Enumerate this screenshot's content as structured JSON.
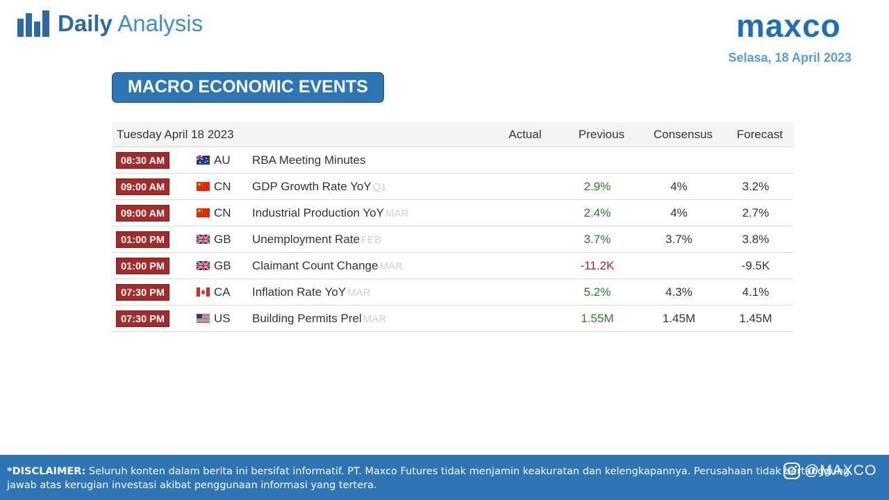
{
  "header": {
    "brand_bold": "Daily",
    "brand_light": "Analysis",
    "company_logo_text": "maxco",
    "date": "Selasa,  18 April  2023",
    "colors": {
      "brand_blue": "#2c6aa6",
      "accent_blue": "#2e75b6",
      "badge_red": "#a52a2a"
    },
    "icons": [
      "bar-chart-logo-icon"
    ]
  },
  "section": {
    "title": "MACRO ECONOMIC EVENTS"
  },
  "table": {
    "date_header": "Tuesday April 18 2023",
    "columns": {
      "actual": "Actual",
      "previous": "Previous",
      "consensus": "Consensus",
      "forecast": "Forecast"
    },
    "rows": [
      {
        "time": "08:30 AM",
        "country": "AU",
        "flag": "au-flag-icon",
        "event": "RBA Meeting Minutes",
        "period": "",
        "actual": "",
        "previous": "",
        "previous_tone": "neutral",
        "consensus": "",
        "forecast": ""
      },
      {
        "time": "09:00 AM",
        "country": "CN",
        "flag": "cn-flag-icon",
        "event": "GDP Growth Rate YoY",
        "period": "Q1",
        "actual": "",
        "previous": "2.9%",
        "previous_tone": "positive",
        "consensus": "4%",
        "forecast": "3.2%"
      },
      {
        "time": "09:00 AM",
        "country": "CN",
        "flag": "cn-flag-icon",
        "event": "Industrial Production YoY",
        "period": "MAR",
        "actual": "",
        "previous": "2.4%",
        "previous_tone": "positive",
        "consensus": "4%",
        "forecast": "2.7%"
      },
      {
        "time": "01:00 PM",
        "country": "GB",
        "flag": "gb-flag-icon",
        "event": "Unemployment Rate",
        "period": "FEB",
        "actual": "",
        "previous": "3.7%",
        "previous_tone": "positive",
        "consensus": "3.7%",
        "forecast": "3.8%"
      },
      {
        "time": "01:00 PM",
        "country": "GB",
        "flag": "gb-flag-icon",
        "event": "Claimant Count Change",
        "period": "MAR",
        "actual": "",
        "previous": "-11.2K",
        "previous_tone": "negative",
        "consensus": "",
        "forecast": "-9.5K"
      },
      {
        "time": "07:30 PM",
        "country": "CA",
        "flag": "ca-flag-icon",
        "event": "Inflation Rate YoY",
        "period": "MAR",
        "actual": "",
        "previous": "5.2%",
        "previous_tone": "positive",
        "consensus": "4.3%",
        "forecast": "4.1%"
      },
      {
        "time": "07:30 PM",
        "country": "US",
        "flag": "us-flag-icon",
        "event": "Building Permits Prel",
        "period": "MAR",
        "actual": "",
        "previous": "1.55M",
        "previous_tone": "positive",
        "consensus": "1.45M",
        "forecast": "1.45M"
      }
    ]
  },
  "footer": {
    "disclaimer_label": "*DISCLAIMER:",
    "disclaimer_text": " Seluruh konten dalam berita ini bersifat informatif. PT. Maxco Futures tidak menjamin keakuratan dan kelengkapannya. Perusahaan tidak bertanggung jawab atas kerugian investasi akibat penggunaan informasi yang tertera.",
    "social_handle": "@MAXCO",
    "social_icon": "facebook-instagram-icon"
  }
}
